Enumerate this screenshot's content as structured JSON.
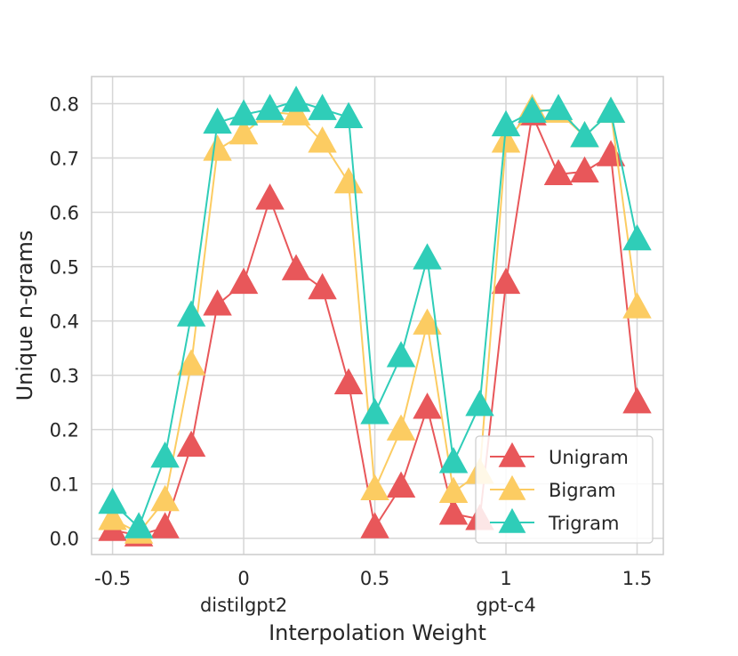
{
  "chart_data": {
    "type": "line",
    "title": "",
    "xlabel": "Interpolation Weight",
    "ylabel": "Unique n-grams",
    "xlim": [
      -0.58,
      1.6
    ],
    "ylim": [
      -0.03,
      0.85
    ],
    "x": [
      -0.5,
      -0.4,
      -0.3,
      -0.2,
      -0.1,
      0.0,
      0.1,
      0.2,
      0.3,
      0.4,
      0.5,
      0.6,
      0.7,
      0.8,
      0.9,
      1.0,
      1.1,
      1.2,
      1.3,
      1.4,
      1.5
    ],
    "xticks": [
      -0.5,
      0,
      0.5,
      1,
      1.5
    ],
    "xtick_labels": [
      "-0.5",
      "0",
      "0.5",
      "1",
      "1.5"
    ],
    "yticks": [
      0.0,
      0.1,
      0.2,
      0.3,
      0.4,
      0.5,
      0.6,
      0.7,
      0.8
    ],
    "ytick_labels": [
      "0.0",
      "0.1",
      "0.2",
      "0.3",
      "0.4",
      "0.5",
      "0.6",
      "0.7",
      "0.8"
    ],
    "annotations": [
      {
        "x": 0,
        "text": "distilgpt2"
      },
      {
        "x": 1,
        "text": "gpt-c4"
      }
    ],
    "grid": true,
    "legend_position": "bottom-right",
    "series": [
      {
        "name": "Unigram",
        "color": "#e8575a",
        "marker": "triangle",
        "values": [
          0.015,
          0.005,
          0.02,
          0.17,
          0.43,
          0.47,
          0.625,
          0.495,
          0.46,
          0.285,
          0.02,
          0.095,
          0.24,
          0.045,
          0.035,
          0.47,
          0.78,
          0.67,
          0.675,
          0.705,
          0.25
        ]
      },
      {
        "name": "Bigram",
        "color": "#fccc62",
        "marker": "triangle",
        "values": [
          0.035,
          0.01,
          0.07,
          0.32,
          0.715,
          0.745,
          0.785,
          0.78,
          0.73,
          0.655,
          0.09,
          0.2,
          0.395,
          0.085,
          0.12,
          0.73,
          0.79,
          0.785,
          0.74,
          0.785,
          0.425
        ]
      },
      {
        "name": "Trigram",
        "color": "#2fcdb8",
        "marker": "triangle",
        "values": [
          0.065,
          0.02,
          0.15,
          0.41,
          0.765,
          0.78,
          0.79,
          0.805,
          0.79,
          0.775,
          0.23,
          0.335,
          0.515,
          0.14,
          0.245,
          0.76,
          0.785,
          0.79,
          0.74,
          0.785,
          0.55
        ]
      }
    ]
  }
}
